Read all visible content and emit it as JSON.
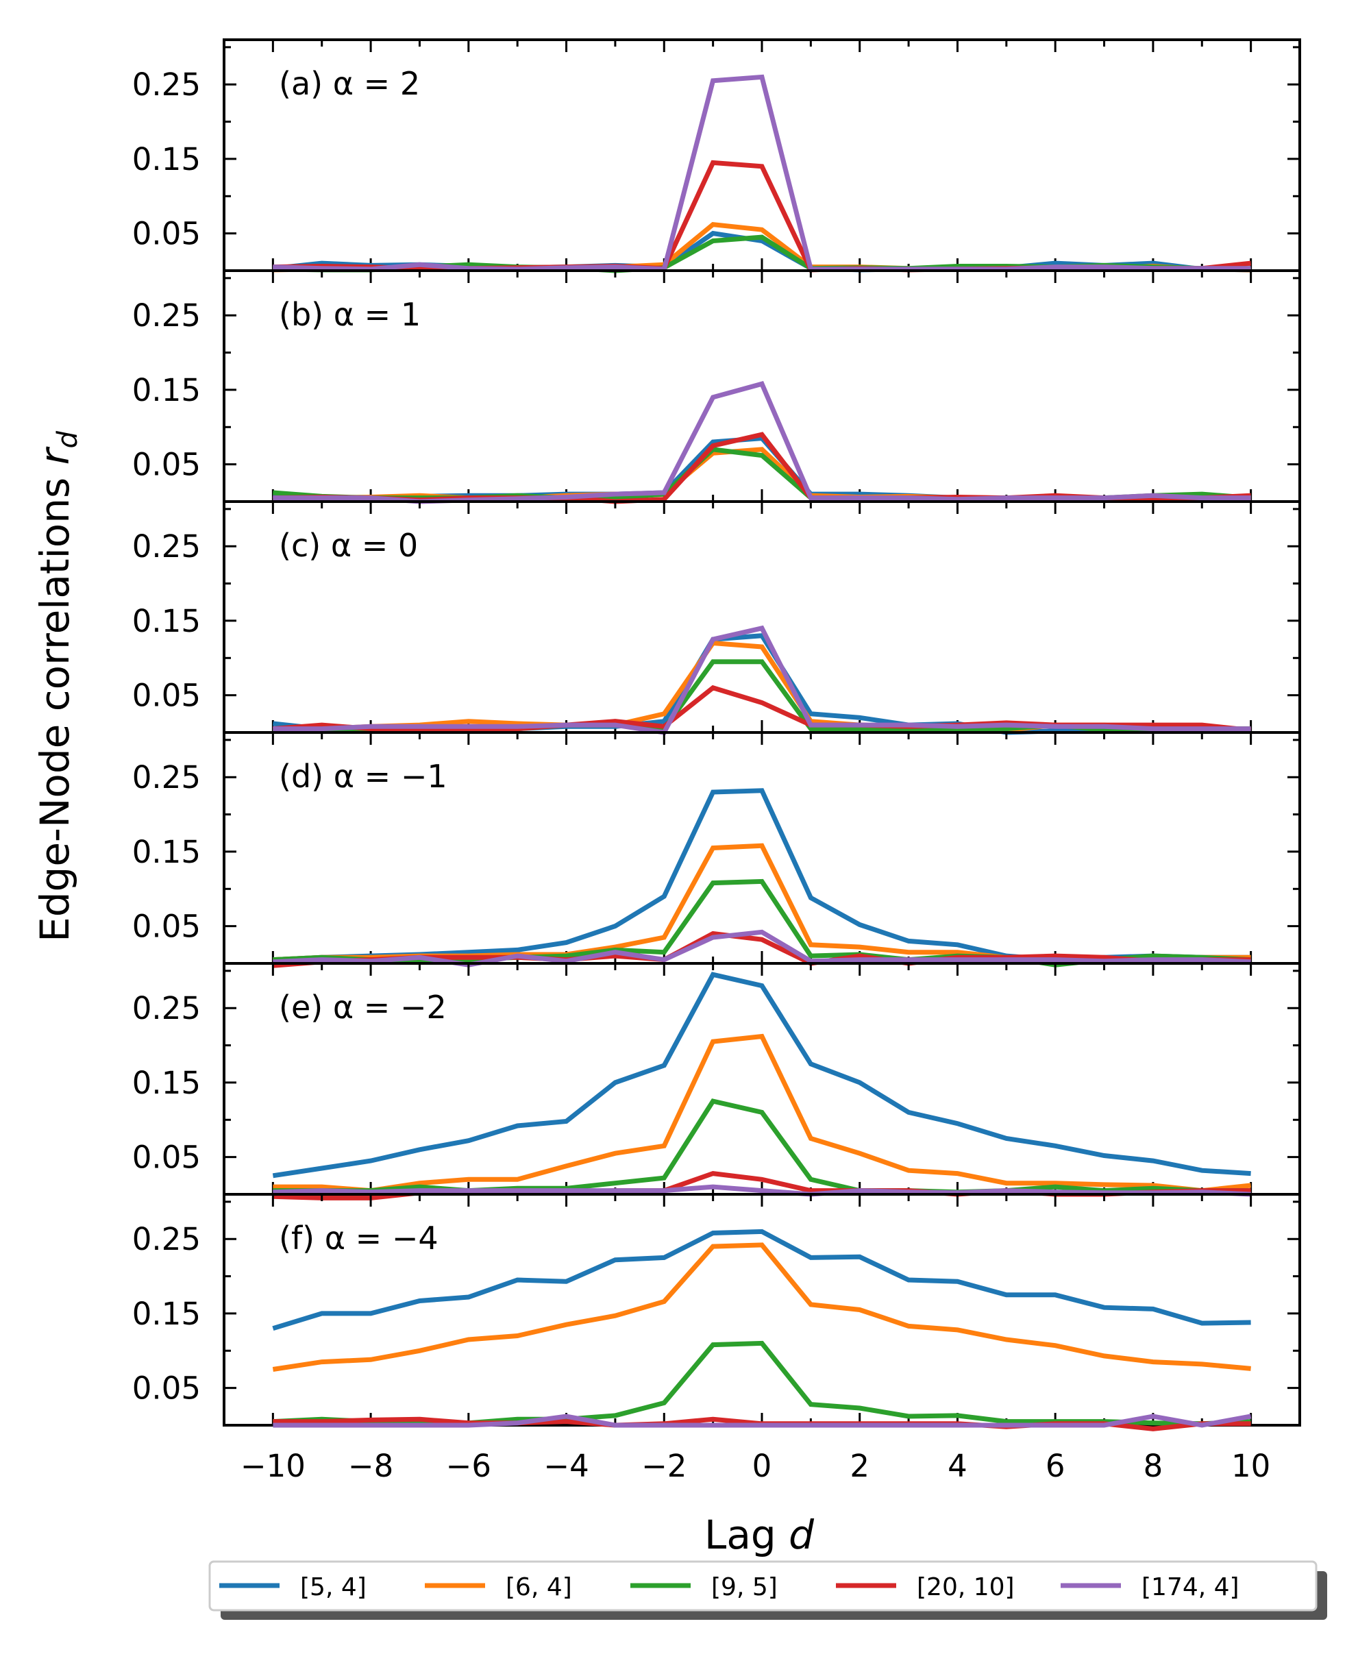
{
  "chart_data": {
    "type": "line",
    "title": "",
    "xlabel": "Lag d",
    "ylabel": "Edge-Node correlations r_d",
    "ylabel_text": "Edge-Node correlations ",
    "ylabel_symbol": "r",
    "ylabel_subscript": "d",
    "xlabel_text": "Lag ",
    "xlabel_symbol": "d",
    "x": [
      -10,
      -9,
      -8,
      -7,
      -6,
      -5,
      -4,
      -3,
      -2,
      -1,
      0,
      1,
      2,
      3,
      4,
      5,
      6,
      7,
      8,
      9,
      10
    ],
    "xticks": [
      -10,
      -8,
      -6,
      -4,
      -2,
      0,
      2,
      4,
      6,
      8,
      10
    ],
    "xtick_labels": [
      "−10",
      "−8",
      "−6",
      "−4",
      "−2",
      "0",
      "2",
      "4",
      "6",
      "8",
      "10"
    ],
    "xlim": [
      -11,
      11
    ],
    "ylim": [
      0.0,
      0.31
    ],
    "yticks": [
      0.05,
      0.15,
      0.25
    ],
    "ytick_labels": [
      "0.05",
      "0.15",
      "0.25"
    ],
    "legend": {
      "placement": "bottom-center",
      "entries": [
        "[5, 4]",
        "[6, 4]",
        "[9, 5]",
        "[20, 10]",
        "[174, 4]"
      ]
    },
    "series_colors": [
      "#1f77b4",
      "#ff7f0e",
      "#2ca02c",
      "#d62728",
      "#9467bd"
    ],
    "panels": [
      {
        "label": "(a) ",
        "alpha_text": "α = 2",
        "series": [
          {
            "name": "[5, 4]",
            "values": [
              0.003,
              0.01,
              0.007,
              0.008,
              0.006,
              0.004,
              0.005,
              0.007,
              0.005,
              0.05,
              0.04,
              0.003,
              0.001,
              0.002,
              0.004,
              0.004,
              0.01,
              0.007,
              0.01,
              0.002,
              0.001
            ]
          },
          {
            "name": "[6, 4]",
            "values": [
              0.001,
              0.002,
              0.003,
              0.004,
              0.006,
              0.004,
              0.003,
              0.005,
              0.008,
              0.062,
              0.055,
              0.005,
              0.005,
              0.003,
              0.002,
              0.003,
              0.004,
              0.003,
              0.006,
              0.002,
              0.001
            ]
          },
          {
            "name": "[9, 5]",
            "values": [
              0.002,
              0.001,
              0.001,
              0.005,
              0.008,
              0.005,
              0.004,
              0.0,
              0.004,
              0.04,
              0.045,
              0.003,
              0.004,
              0.003,
              0.006,
              0.006,
              0.005,
              0.007,
              0.005,
              0.003,
              0.003
            ]
          },
          {
            "name": "[20, 10]",
            "values": [
              0.005,
              0.006,
              0.005,
              0.003,
              0.003,
              0.004,
              0.005,
              0.006,
              0.003,
              0.145,
              0.14,
              0.001,
              0.003,
              0.001,
              0.002,
              0.003,
              0.004,
              0.004,
              0.003,
              0.003,
              0.01
            ]
          },
          {
            "name": "[174, 4]",
            "values": [
              0.005,
              0.003,
              0.002,
              0.008,
              0.003,
              0.002,
              0.004,
              0.005,
              0.002,
              0.255,
              0.26,
              0.002,
              0.002,
              0.002,
              0.002,
              0.002,
              0.005,
              0.005,
              0.003,
              0.003,
              0.003
            ]
          }
        ]
      },
      {
        "label": "(b) ",
        "alpha_text": "α = 1",
        "series": [
          {
            "name": "[5, 4]",
            "values": [
              0.008,
              0.005,
              0.005,
              0.007,
              0.008,
              0.008,
              0.01,
              0.01,
              0.012,
              0.08,
              0.085,
              0.01,
              0.01,
              0.008,
              0.005,
              0.005,
              0.005,
              0.005,
              0.006,
              0.005,
              0.005
            ]
          },
          {
            "name": "[6, 4]",
            "values": [
              0.003,
              0.005,
              0.006,
              0.008,
              0.005,
              0.005,
              0.008,
              0.01,
              0.01,
              0.065,
              0.07,
              0.008,
              0.006,
              0.007,
              0.005,
              0.005,
              0.004,
              0.002,
              0.003,
              0.002,
              0.005
            ]
          },
          {
            "name": "[9, 5]",
            "values": [
              0.012,
              0.007,
              0.005,
              0.005,
              0.005,
              0.008,
              0.005,
              0.005,
              0.01,
              0.07,
              0.062,
              0.005,
              0.005,
              0.005,
              0.005,
              0.005,
              0.003,
              0.005,
              0.008,
              0.01,
              0.005
            ]
          },
          {
            "name": "[20, 10]",
            "values": [
              0.005,
              0.006,
              0.005,
              0.002,
              0.005,
              0.005,
              0.005,
              0.0,
              0.003,
              0.075,
              0.09,
              0.005,
              0.005,
              0.005,
              0.006,
              0.005,
              0.008,
              0.005,
              0.005,
              0.005,
              0.008
            ]
          },
          {
            "name": "[174, 4]",
            "values": [
              0.005,
              0.005,
              0.005,
              0.0,
              0.002,
              0.004,
              0.006,
              0.01,
              0.012,
              0.14,
              0.158,
              0.005,
              0.005,
              0.005,
              0.003,
              0.005,
              0.005,
              0.005,
              0.008,
              0.005,
              0.005
            ]
          }
        ]
      },
      {
        "label": "(c) ",
        "alpha_text": "α = 0",
        "series": [
          {
            "name": "[5, 4]",
            "values": [
              0.012,
              0.005,
              0.005,
              0.003,
              0.003,
              0.005,
              0.008,
              0.008,
              0.015,
              0.125,
              0.13,
              0.025,
              0.02,
              0.01,
              0.012,
              0.0,
              0.002,
              0.005,
              0.005,
              0.002,
              0.003
            ]
          },
          {
            "name": "[6, 4]",
            "values": [
              0.005,
              0.005,
              0.008,
              0.01,
              0.015,
              0.012,
              0.01,
              0.01,
              0.025,
              0.12,
              0.115,
              0.015,
              0.01,
              0.008,
              0.005,
              0.003,
              0.01,
              0.01,
              0.005,
              0.005,
              0.005
            ]
          },
          {
            "name": "[9, 5]",
            "values": [
              0.005,
              0.002,
              0.005,
              0.008,
              0.005,
              0.005,
              0.01,
              0.01,
              0.005,
              0.095,
              0.095,
              0.005,
              0.005,
              0.005,
              0.005,
              0.005,
              0.01,
              0.003,
              0.005,
              0.005,
              0.005
            ]
          },
          {
            "name": "[20, 10]",
            "values": [
              0.005,
              0.01,
              0.005,
              0.003,
              0.005,
              0.005,
              0.01,
              0.015,
              0.008,
              0.06,
              0.04,
              0.01,
              0.01,
              0.008,
              0.01,
              0.013,
              0.01,
              0.01,
              0.01,
              0.01,
              0.003
            ]
          },
          {
            "name": "[174, 4]",
            "values": [
              0.005,
              0.005,
              0.008,
              0.008,
              0.008,
              0.008,
              0.01,
              0.01,
              0.0,
              0.125,
              0.14,
              0.01,
              0.01,
              0.01,
              0.008,
              0.01,
              0.008,
              0.008,
              0.005,
              0.005,
              0.005
            ]
          }
        ]
      },
      {
        "label": "(d) ",
        "alpha_text": "α = −1",
        "series": [
          {
            "name": "[5, 4]",
            "values": [
              0.005,
              0.008,
              0.01,
              0.012,
              0.015,
              0.018,
              0.028,
              0.05,
              0.09,
              0.23,
              0.232,
              0.088,
              0.052,
              0.03,
              0.025,
              0.01,
              0.005,
              0.008,
              0.01,
              0.008,
              0.008
            ]
          },
          {
            "name": "[6, 4]",
            "values": [
              0.005,
              0.008,
              0.008,
              0.01,
              0.01,
              0.012,
              0.012,
              0.022,
              0.035,
              0.155,
              0.158,
              0.025,
              0.022,
              0.015,
              0.015,
              0.008,
              0.005,
              0.005,
              0.005,
              0.008,
              0.008
            ]
          },
          {
            "name": "[9, 5]",
            "values": [
              0.005,
              0.008,
              0.005,
              0.005,
              0.005,
              0.008,
              0.01,
              0.018,
              0.015,
              0.108,
              0.11,
              0.01,
              0.012,
              0.005,
              0.01,
              0.008,
              -0.002,
              0.005,
              0.01,
              0.008,
              0.005
            ]
          },
          {
            "name": "[20, 10]",
            "values": [
              -0.003,
              0.002,
              0.005,
              0.008,
              0.008,
              0.008,
              0.005,
              0.01,
              0.005,
              0.04,
              0.032,
              0.0,
              0.01,
              0.0,
              0.008,
              0.008,
              0.01,
              0.008,
              0.003,
              0.005,
              0.005
            ]
          },
          {
            "name": "[174, 4]",
            "values": [
              0.002,
              0.005,
              0.003,
              0.008,
              -0.002,
              0.01,
              0.003,
              0.015,
              0.005,
              0.035,
              0.042,
              0.003,
              0.005,
              0.005,
              0.005,
              0.005,
              0.005,
              0.003,
              0.005,
              0.005,
              0.002
            ]
          }
        ]
      },
      {
        "label": "(e) ",
        "alpha_text": "α = −2",
        "series": [
          {
            "name": "[5, 4]",
            "values": [
              0.025,
              0.035,
              0.045,
              0.06,
              0.072,
              0.092,
              0.098,
              0.15,
              0.173,
              0.295,
              0.28,
              0.175,
              0.15,
              0.11,
              0.095,
              0.075,
              0.065,
              0.052,
              0.045,
              0.032,
              0.028
            ]
          },
          {
            "name": "[6, 4]",
            "values": [
              0.01,
              0.01,
              0.005,
              0.015,
              0.02,
              0.02,
              0.038,
              0.055,
              0.065,
              0.205,
              0.212,
              0.075,
              0.055,
              0.032,
              0.028,
              0.015,
              0.015,
              0.013,
              0.012,
              0.005,
              0.012
            ]
          },
          {
            "name": "[9, 5]",
            "values": [
              0.005,
              0.005,
              0.005,
              0.01,
              0.005,
              0.008,
              0.008,
              0.015,
              0.022,
              0.125,
              0.11,
              0.02,
              0.005,
              0.005,
              0.003,
              0.005,
              0.01,
              0.005,
              0.008,
              0.005,
              0.005
            ]
          },
          {
            "name": "[20, 10]",
            "values": [
              -0.003,
              -0.005,
              -0.005,
              0.002,
              0.003,
              0.005,
              0.003,
              0.005,
              0.005,
              0.028,
              0.02,
              0.005,
              0.005,
              0.005,
              0.0,
              0.005,
              0.0,
              0.0,
              0.003,
              0.005,
              0.005
            ]
          },
          {
            "name": "[174, 4]",
            "values": [
              0.003,
              0.005,
              0.003,
              0.005,
              0.005,
              0.005,
              0.005,
              0.005,
              0.005,
              0.01,
              0.005,
              0.0,
              0.005,
              0.003,
              0.002,
              0.005,
              0.003,
              0.002,
              0.002,
              0.003,
              0.0
            ]
          }
        ]
      },
      {
        "label": "(f) ",
        "alpha_text": "α = −4",
        "series": [
          {
            "name": "[5, 4]",
            "values": [
              0.13,
              0.15,
              0.15,
              0.167,
              0.172,
              0.195,
              0.193,
              0.222,
              0.225,
              0.258,
              0.26,
              0.225,
              0.226,
              0.195,
              0.193,
              0.175,
              0.175,
              0.158,
              0.156,
              0.137,
              0.138
            ]
          },
          {
            "name": "[6, 4]",
            "values": [
              0.075,
              0.085,
              0.088,
              0.1,
              0.115,
              0.12,
              0.135,
              0.147,
              0.166,
              0.24,
              0.242,
              0.162,
              0.155,
              0.133,
              0.128,
              0.115,
              0.107,
              0.093,
              0.085,
              0.082,
              0.076
            ]
          },
          {
            "name": "[9, 5]",
            "values": [
              0.005,
              0.008,
              0.005,
              0.003,
              0.003,
              0.008,
              0.008,
              0.013,
              0.03,
              0.108,
              0.11,
              0.028,
              0.023,
              0.012,
              0.013,
              0.005,
              0.005,
              0.005,
              0.003,
              0.002,
              0.005
            ]
          },
          {
            "name": "[20, 10]",
            "values": [
              0.005,
              0.005,
              0.007,
              0.008,
              0.003,
              0.003,
              0.005,
              0.0,
              0.002,
              0.008,
              0.002,
              0.002,
              0.002,
              0.002,
              0.002,
              -0.002,
              0.002,
              0.002,
              -0.005,
              0.002,
              0.002
            ]
          },
          {
            "name": "[174, 4]",
            "values": [
              0.0,
              0.0,
              0.0,
              0.0,
              0.0,
              0.003,
              0.012,
              0.0,
              0.0,
              0.0,
              0.0,
              0.0,
              0.0,
              0.0,
              0.0,
              0.0,
              0.0,
              0.0,
              0.012,
              0.0,
              0.012
            ]
          }
        ]
      }
    ]
  }
}
